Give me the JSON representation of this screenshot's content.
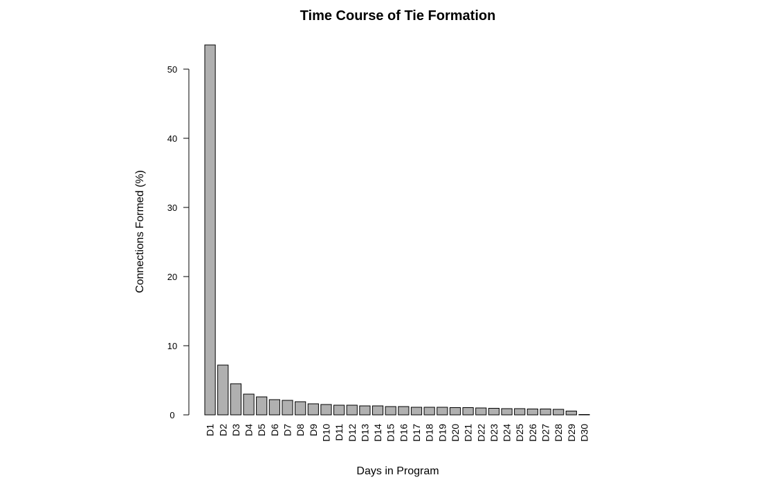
{
  "chart_data": {
    "type": "bar",
    "title": "Time Course of Tie Formation",
    "xlabel": "Days in Program",
    "ylabel": "Connections Formed (%)",
    "categories": [
      "D1",
      "D2",
      "D3",
      "D4",
      "D5",
      "D6",
      "D7",
      "D8",
      "D9",
      "D10",
      "D11",
      "D12",
      "D13",
      "D14",
      "D15",
      "D16",
      "D17",
      "D18",
      "D19",
      "D20",
      "D21",
      "D22",
      "D23",
      "D24",
      "D25",
      "D26",
      "D27",
      "D28",
      "D29",
      "D30"
    ],
    "values": [
      53.5,
      7.2,
      4.5,
      3.0,
      2.6,
      2.2,
      2.1,
      1.9,
      1.6,
      1.5,
      1.4,
      1.4,
      1.3,
      1.3,
      1.2,
      1.2,
      1.1,
      1.1,
      1.1,
      1.05,
      1.05,
      1.0,
      0.95,
      0.9,
      0.9,
      0.85,
      0.85,
      0.8,
      0.55,
      0.05
    ],
    "ylim": [
      0,
      55
    ],
    "yticks": [
      0,
      10,
      20,
      30,
      40,
      50
    ],
    "bar_color": "#b0b0b0",
    "grid": false,
    "legend": "none"
  }
}
